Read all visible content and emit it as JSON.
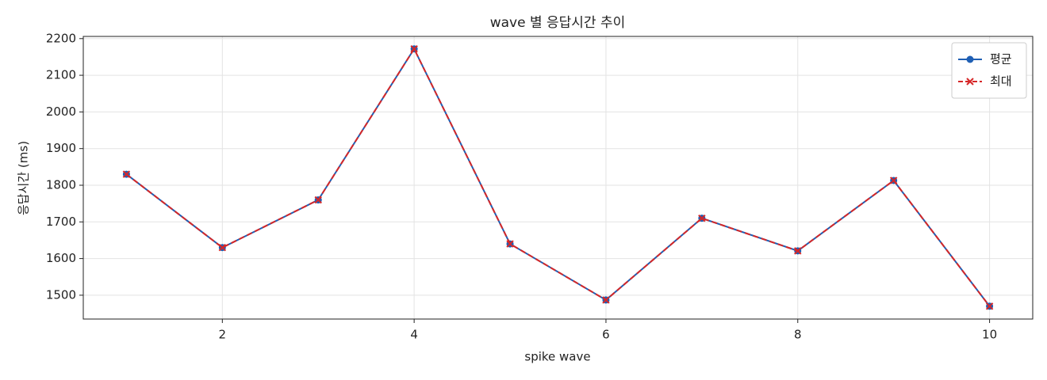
{
  "chart_data": {
    "type": "line",
    "title": "wave 별 응답시간 추이",
    "x_label": "spike wave",
    "y_label": "응답시간 (ms)",
    "x": [
      1,
      2,
      3,
      4,
      5,
      6,
      7,
      8,
      9,
      10
    ],
    "series": [
      {
        "name": "평균",
        "color": "#1f5fb4",
        "marker": "o",
        "linestyle": "solid",
        "values": [
          1830,
          1630,
          1760,
          2172,
          1640,
          1487,
          1710,
          1621,
          1813,
          1470
        ]
      },
      {
        "name": "최대",
        "color": "#d62728",
        "marker": "x",
        "linestyle": "dashed",
        "values": [
          1830,
          1630,
          1760,
          2172,
          1640,
          1487,
          1710,
          1621,
          1813,
          1470
        ]
      }
    ],
    "xlim": [
      0.55,
      10.45
    ],
    "ylim": [
      1435,
      2206
    ],
    "xticks": [
      2,
      4,
      6,
      8,
      10
    ],
    "yticks": [
      1500,
      1600,
      1700,
      1800,
      1900,
      2000,
      2100,
      2200
    ],
    "grid": true,
    "legend": "upper right"
  }
}
